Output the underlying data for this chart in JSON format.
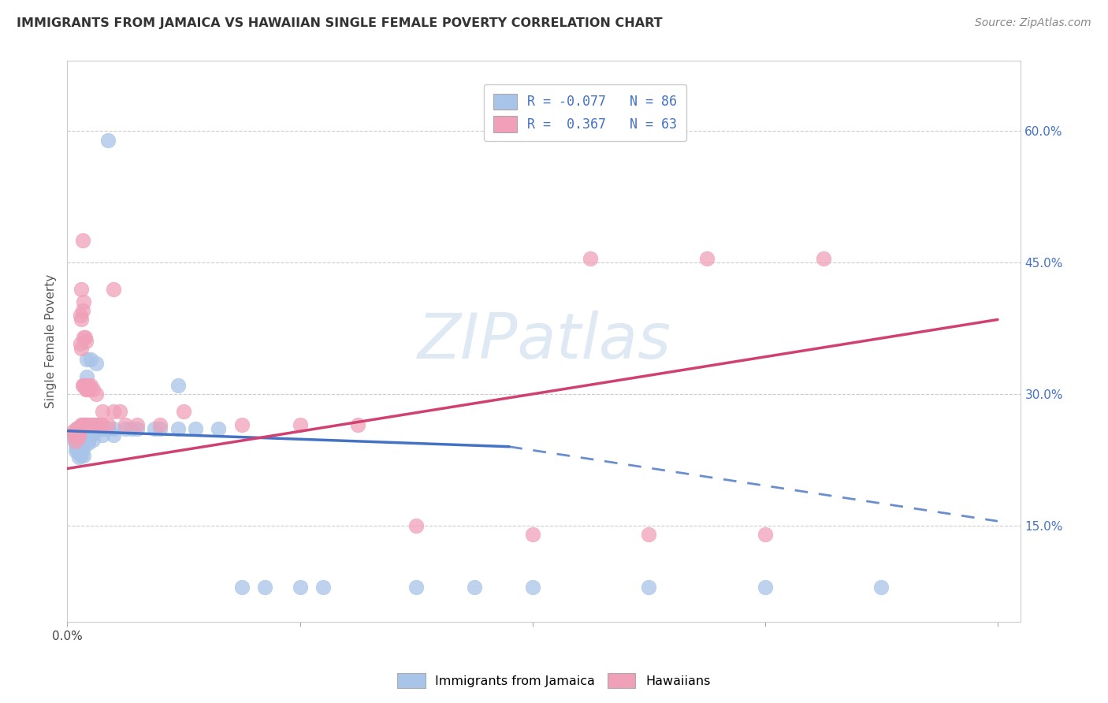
{
  "title": "IMMIGRANTS FROM JAMAICA VS HAWAIIAN SINGLE FEMALE POVERTY CORRELATION CHART",
  "source": "Source: ZipAtlas.com",
  "ylabel": "Single Female Poverty",
  "watermark": "ZIPatlas",
  "blue_color": "#a8c4e8",
  "pink_color": "#f0a0b8",
  "blue_line_color": "#4472c4",
  "pink_line_color": "#d04070",
  "legend_r1": "-0.077",
  "legend_n1": "86",
  "legend_r2": "0.367",
  "legend_n2": "63",
  "blue_dots": [
    [
      0.005,
      0.255
    ],
    [
      0.006,
      0.248
    ],
    [
      0.007,
      0.242
    ],
    [
      0.007,
      0.235
    ],
    [
      0.008,
      0.26
    ],
    [
      0.008,
      0.252
    ],
    [
      0.008,
      0.245
    ],
    [
      0.008,
      0.238
    ],
    [
      0.009,
      0.258
    ],
    [
      0.009,
      0.25
    ],
    [
      0.009,
      0.243
    ],
    [
      0.009,
      0.236
    ],
    [
      0.01,
      0.262
    ],
    [
      0.01,
      0.255
    ],
    [
      0.01,
      0.248
    ],
    [
      0.01,
      0.241
    ],
    [
      0.01,
      0.235
    ],
    [
      0.01,
      0.228
    ],
    [
      0.011,
      0.26
    ],
    [
      0.011,
      0.253
    ],
    [
      0.011,
      0.246
    ],
    [
      0.011,
      0.239
    ],
    [
      0.011,
      0.232
    ],
    [
      0.012,
      0.258
    ],
    [
      0.012,
      0.251
    ],
    [
      0.012,
      0.244
    ],
    [
      0.012,
      0.237
    ],
    [
      0.012,
      0.23
    ],
    [
      0.013,
      0.265
    ],
    [
      0.013,
      0.258
    ],
    [
      0.013,
      0.251
    ],
    [
      0.013,
      0.244
    ],
    [
      0.013,
      0.237
    ],
    [
      0.014,
      0.263
    ],
    [
      0.014,
      0.256
    ],
    [
      0.014,
      0.249
    ],
    [
      0.014,
      0.242
    ],
    [
      0.014,
      0.23
    ],
    [
      0.015,
      0.265
    ],
    [
      0.015,
      0.258
    ],
    [
      0.016,
      0.262
    ],
    [
      0.016,
      0.255
    ],
    [
      0.016,
      0.248
    ],
    [
      0.017,
      0.34
    ],
    [
      0.017,
      0.32
    ],
    [
      0.017,
      0.26
    ],
    [
      0.017,
      0.253
    ],
    [
      0.018,
      0.258
    ],
    [
      0.018,
      0.251
    ],
    [
      0.018,
      0.244
    ],
    [
      0.019,
      0.256
    ],
    [
      0.019,
      0.249
    ],
    [
      0.02,
      0.34
    ],
    [
      0.02,
      0.26
    ],
    [
      0.02,
      0.253
    ],
    [
      0.021,
      0.258
    ],
    [
      0.022,
      0.255
    ],
    [
      0.022,
      0.248
    ],
    [
      0.025,
      0.335
    ],
    [
      0.025,
      0.265
    ],
    [
      0.028,
      0.26
    ],
    [
      0.03,
      0.26
    ],
    [
      0.03,
      0.253
    ],
    [
      0.035,
      0.59
    ],
    [
      0.035,
      0.26
    ],
    [
      0.04,
      0.26
    ],
    [
      0.04,
      0.253
    ],
    [
      0.05,
      0.26
    ],
    [
      0.055,
      0.26
    ],
    [
      0.06,
      0.26
    ],
    [
      0.075,
      0.26
    ],
    [
      0.08,
      0.26
    ],
    [
      0.095,
      0.31
    ],
    [
      0.095,
      0.26
    ],
    [
      0.11,
      0.26
    ],
    [
      0.13,
      0.26
    ],
    [
      0.15,
      0.08
    ],
    [
      0.17,
      0.08
    ],
    [
      0.2,
      0.08
    ],
    [
      0.22,
      0.08
    ],
    [
      0.3,
      0.08
    ],
    [
      0.35,
      0.08
    ],
    [
      0.4,
      0.08
    ],
    [
      0.5,
      0.08
    ],
    [
      0.6,
      0.08
    ],
    [
      0.7,
      0.08
    ]
  ],
  "pink_dots": [
    [
      0.005,
      0.258
    ],
    [
      0.006,
      0.252
    ],
    [
      0.007,
      0.246
    ],
    [
      0.008,
      0.26
    ],
    [
      0.008,
      0.253
    ],
    [
      0.009,
      0.258
    ],
    [
      0.009,
      0.251
    ],
    [
      0.01,
      0.26
    ],
    [
      0.01,
      0.252
    ],
    [
      0.011,
      0.39
    ],
    [
      0.011,
      0.358
    ],
    [
      0.011,
      0.26
    ],
    [
      0.012,
      0.42
    ],
    [
      0.012,
      0.385
    ],
    [
      0.012,
      0.352
    ],
    [
      0.012,
      0.265
    ],
    [
      0.013,
      0.475
    ],
    [
      0.013,
      0.395
    ],
    [
      0.013,
      0.31
    ],
    [
      0.013,
      0.265
    ],
    [
      0.014,
      0.405
    ],
    [
      0.014,
      0.365
    ],
    [
      0.014,
      0.31
    ],
    [
      0.014,
      0.265
    ],
    [
      0.015,
      0.365
    ],
    [
      0.015,
      0.31
    ],
    [
      0.015,
      0.265
    ],
    [
      0.016,
      0.36
    ],
    [
      0.016,
      0.305
    ],
    [
      0.016,
      0.265
    ],
    [
      0.017,
      0.305
    ],
    [
      0.017,
      0.265
    ],
    [
      0.018,
      0.31
    ],
    [
      0.018,
      0.265
    ],
    [
      0.019,
      0.305
    ],
    [
      0.019,
      0.265
    ],
    [
      0.02,
      0.31
    ],
    [
      0.02,
      0.265
    ],
    [
      0.022,
      0.305
    ],
    [
      0.022,
      0.265
    ],
    [
      0.025,
      0.3
    ],
    [
      0.025,
      0.265
    ],
    [
      0.028,
      0.265
    ],
    [
      0.03,
      0.28
    ],
    [
      0.03,
      0.265
    ],
    [
      0.035,
      0.265
    ],
    [
      0.04,
      0.42
    ],
    [
      0.04,
      0.28
    ],
    [
      0.045,
      0.28
    ],
    [
      0.05,
      0.265
    ],
    [
      0.06,
      0.265
    ],
    [
      0.08,
      0.265
    ],
    [
      0.1,
      0.28
    ],
    [
      0.15,
      0.265
    ],
    [
      0.2,
      0.265
    ],
    [
      0.25,
      0.265
    ],
    [
      0.3,
      0.15
    ],
    [
      0.4,
      0.14
    ],
    [
      0.45,
      0.455
    ],
    [
      0.5,
      0.14
    ],
    [
      0.55,
      0.455
    ],
    [
      0.6,
      0.14
    ],
    [
      0.65,
      0.455
    ]
  ],
  "blue_line": {
    "x0": 0.0,
    "y0": 0.258,
    "x1": 0.38,
    "y1": 0.24,
    "x_dash_end": 0.8,
    "y_dash_end": 0.155
  },
  "pink_line": {
    "x0": 0.0,
    "y0": 0.215,
    "x1": 0.8,
    "y1": 0.385
  },
  "xlim": [
    0.0,
    0.82
  ],
  "ylim": [
    0.04,
    0.68
  ],
  "ytick_vals": [
    0.15,
    0.3,
    0.45,
    0.6
  ],
  "ytick_labels": [
    "15.0%",
    "30.0%",
    "45.0%",
    "60.0%"
  ],
  "xtick_vals": [
    0.0,
    0.2,
    0.4,
    0.6,
    0.8
  ],
  "xtick_labels_show": {
    "0.0": "0.0%"
  }
}
